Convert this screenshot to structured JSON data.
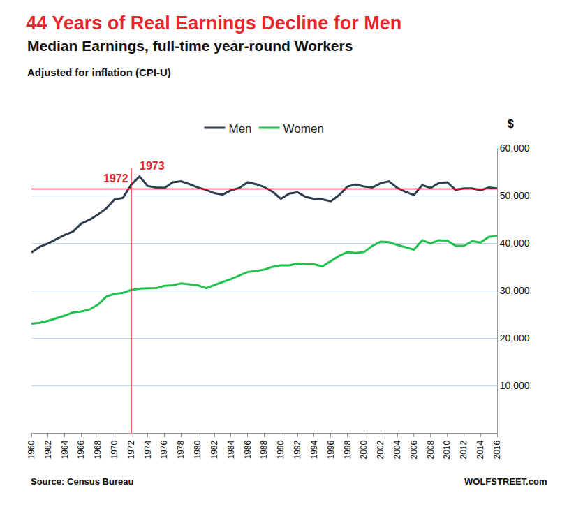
{
  "chart_data": {
    "type": "line",
    "title": "44 Years of Real Earnings Decline for Men",
    "subtitles": [
      "Median Earnings, full-time year-round Workers",
      "Adjusted for inflation (CPI-U)"
    ],
    "ylabel": "$",
    "source": "Source: Census Bureau",
    "credit": "WOLFSTREET.com",
    "x": [
      1960,
      1961,
      1962,
      1963,
      1964,
      1965,
      1966,
      1967,
      1968,
      1969,
      1970,
      1971,
      1972,
      1973,
      1974,
      1975,
      1976,
      1977,
      1978,
      1979,
      1980,
      1981,
      1982,
      1983,
      1984,
      1985,
      1986,
      1987,
      1988,
      1989,
      1990,
      1991,
      1992,
      1993,
      1994,
      1995,
      1996,
      1997,
      1998,
      1999,
      2000,
      2001,
      2002,
      2003,
      2004,
      2005,
      2006,
      2007,
      2008,
      2009,
      2010,
      2011,
      2012,
      2013,
      2014,
      2015,
      2016
    ],
    "series": [
      {
        "name": "Men",
        "color": "#2f3d4f",
        "values": [
          38000,
          39200,
          39900,
          40800,
          41700,
          42400,
          44100,
          44900,
          46000,
          47300,
          49200,
          49500,
          52300,
          54000,
          52000,
          51700,
          51600,
          52800,
          53000,
          52400,
          51700,
          51200,
          50500,
          50200,
          51100,
          51600,
          52800,
          52400,
          51800,
          50800,
          49300,
          50400,
          50700,
          49700,
          49300,
          49200,
          48800,
          50100,
          51900,
          52300,
          51900,
          51700,
          52600,
          53000,
          51600,
          50800,
          50100,
          52200,
          51600,
          52600,
          52800,
          51200,
          51500,
          51500,
          51100,
          51700,
          51500
        ]
      },
      {
        "name": "Women",
        "color": "#22c04e",
        "values": [
          23000,
          23200,
          23600,
          24100,
          24700,
          25400,
          25600,
          26000,
          27000,
          28700,
          29300,
          29500,
          30100,
          30400,
          30500,
          30500,
          31000,
          31100,
          31500,
          31300,
          31100,
          30500,
          31200,
          31800,
          32400,
          33200,
          33900,
          34100,
          34400,
          35000,
          35300,
          35300,
          35700,
          35500,
          35500,
          35100,
          36200,
          37300,
          38100,
          37900,
          38100,
          39400,
          40300,
          40200,
          39600,
          39100,
          38600,
          40600,
          39900,
          40600,
          40500,
          39400,
          39400,
          40400,
          40100,
          41300,
          41500
        ]
      }
    ],
    "xlim": [
      1960,
      2016
    ],
    "xticks": [
      1960,
      1962,
      1964,
      1966,
      1968,
      1970,
      1972,
      1974,
      1976,
      1978,
      1980,
      1982,
      1984,
      1986,
      1988,
      1990,
      1992,
      1994,
      1996,
      1998,
      2000,
      2002,
      2004,
      2006,
      2008,
      2010,
      2012,
      2014,
      2016
    ],
    "ylim": [
      0,
      60000
    ],
    "yticks": [
      {
        "value": 10000,
        "label": "10,000"
      },
      {
        "value": 20000,
        "label": "20,000"
      },
      {
        "value": 30000,
        "label": "30,000"
      },
      {
        "value": 40000,
        "label": "40,000"
      },
      {
        "value": 50000,
        "label": "50,000"
      },
      {
        "value": 60000,
        "label": "60,000"
      }
    ],
    "grid": true,
    "legend": "top",
    "reference_lines": [
      {
        "axis": "x",
        "value": 1972,
        "color": "#e8262b"
      },
      {
        "axis": "y",
        "value": 51400,
        "color": "#e8262b"
      }
    ],
    "annotations": [
      {
        "text": "1972",
        "x": 1972,
        "color": "#e8262b"
      },
      {
        "text": "1973",
        "x": 1973,
        "color": "#e8262b"
      }
    ]
  }
}
